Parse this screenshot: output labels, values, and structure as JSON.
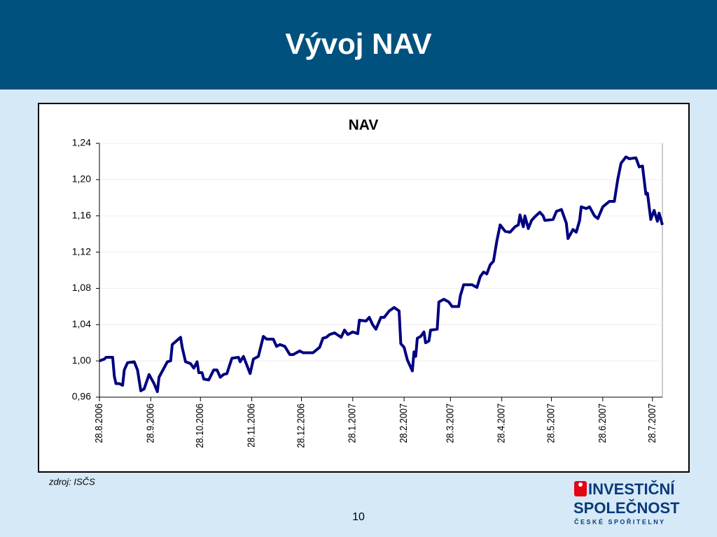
{
  "slide": {
    "title": "Vývoj NAV",
    "source": "zdroj: ISČS",
    "page": "10",
    "logo": [
      "INVESTIČNÍ",
      "SPOLEČNOST",
      "Č E S K É   S P O Ř I T E L N Y"
    ]
  },
  "chart_data": {
    "type": "line",
    "title": "NAV",
    "color": "#000080",
    "grid": true,
    "x": [
      "28.8.2006",
      "31.8.2006",
      "1.9.2006",
      "5.9.2006",
      "6.9.2006",
      "7.9.2006",
      "9.9.2006",
      "11.9.2006",
      "12.9.2006",
      "14.9.2006",
      "18.9.2006",
      "20.9.2006",
      "22.9.2006",
      "24.9.2006",
      "27.9.2006",
      "30.9.2006",
      "2.10.2006",
      "3.10.2006",
      "8.10.2006",
      "10.10.2006",
      "11.10.2006",
      "16.10.2006",
      "17.10.2006",
      "19.10.2006",
      "22.10.2006",
      "24.10.2006",
      "26.10.2006",
      "27.10.2006",
      "29.10.2006",
      "30.10.2006",
      "2.11.2006",
      "5.11.2006",
      "7.11.2006",
      "9.11.2006",
      "11.11.2006",
      "13.11.2006",
      "16.11.2006",
      "20.11.2006",
      "21.11.2006",
      "23.11.2006",
      "27.11.2006",
      "29.11.2006",
      "2.12.2006",
      "5.12.2006",
      "7.12.2006",
      "11.12.2006",
      "13.12.2006",
      "15.12.2006",
      "18.12.2006",
      "21.12.2006",
      "23.12.2006",
      "27.12.2006",
      "29.12.2006",
      "4.1.2007",
      "8.1.2007",
      "10.1.2007",
      "12.1.2007",
      "14.1.2007",
      "17.1.2007",
      "21.1.2007",
      "23.1.2007",
      "25.1.2007",
      "28.1.2007",
      "31.1.2007",
      "1.2.2007",
      "5.2.2007",
      "7.2.2007",
      "9.2.2007",
      "11.2.2007",
      "14.2.2007",
      "16.2.2007",
      "19.2.2007",
      "22.2.2007",
      "25.2.2007",
      "26.2.2007",
      "28.2.2007",
      "2.3.2007",
      "5.3.2007",
      "6.3.2007",
      "7.3.2007",
      "8.3.2007",
      "10.3.2007",
      "12.3.2007",
      "13.3.2007",
      "15.3.2007",
      "16.3.2007",
      "20.3.2007",
      "21.3.2007",
      "24.3.2007",
      "27.3.2007",
      "29.3.2007",
      "2.4.2007",
      "3.4.2007",
      "5.4.2007",
      "10.4.2007",
      "13.4.2007",
      "15.4.2007",
      "17.4.2007",
      "19.4.2007",
      "21.4.2007",
      "23.4.2007",
      "25.4.2007",
      "27.4.2007",
      "30.4.2007",
      "3.5.2007",
      "6.5.2007",
      "8.5.2007",
      "9.5.2007",
      "11.5.2007",
      "12.5.2007",
      "14.5.2007",
      "16.5.2007",
      "18.5.2007",
      "21.5.2007",
      "23.5.2007",
      "24.5.2007",
      "29.5.2007",
      "31.5.2007",
      "3.6.2007",
      "6.6.2007",
      "7.6.2007",
      "10.6.2007",
      "12.6.2007",
      "14.6.2007",
      "15.6.2007",
      "18.6.2007",
      "20.6.2007",
      "23.6.2007",
      "25.6.2007",
      "28.6.2007",
      "2.7.2007",
      "5.7.2007",
      "7.7.2007",
      "9.7.2007",
      "12.7.2007",
      "14.7.2007",
      "18.7.2007",
      "20.7.2007",
      "22.7.2007",
      "24.7.2007",
      "25.7.2007",
      "27.7.2007",
      "29.7.2007",
      "31.7.2007",
      "1.8.2007",
      "3.8.2007"
    ],
    "values": [
      1.0,
      1.002,
      1.004,
      1.004,
      0.983,
      0.975,
      0.975,
      0.973,
      0.99,
      0.998,
      0.999,
      0.99,
      0.967,
      0.969,
      0.985,
      0.975,
      0.966,
      0.982,
      0.999,
      1.0,
      1.018,
      1.026,
      1.015,
      0.999,
      0.997,
      0.992,
      0.999,
      0.987,
      0.987,
      0.98,
      0.979,
      0.99,
      0.99,
      0.982,
      0.985,
      0.986,
      1.003,
      1.004,
      0.999,
      1.005,
      0.986,
      1.002,
      1.005,
      1.027,
      1.024,
      1.024,
      1.016,
      1.018,
      1.016,
      1.007,
      1.007,
      1.011,
      1.009,
      1.009,
      1.015,
      1.025,
      1.026,
      1.029,
      1.031,
      1.026,
      1.034,
      1.029,
      1.032,
      1.03,
      1.045,
      1.044,
      1.048,
      1.04,
      1.035,
      1.048,
      1.048,
      1.055,
      1.059,
      1.055,
      1.019,
      1.015,
      1.001,
      0.989,
      1.01,
      1.005,
      1.025,
      1.027,
      1.032,
      1.02,
      1.022,
      1.034,
      1.035,
      1.065,
      1.068,
      1.065,
      1.06,
      1.06,
      1.072,
      1.084,
      1.084,
      1.081,
      1.093,
      1.098,
      1.096,
      1.106,
      1.11,
      1.132,
      1.15,
      1.143,
      1.142,
      1.148,
      1.15,
      1.161,
      1.148,
      1.16,
      1.146,
      1.155,
      1.159,
      1.164,
      1.16,
      1.155,
      1.156,
      1.165,
      1.167,
      1.152,
      1.135,
      1.145,
      1.142,
      1.155,
      1.17,
      1.168,
      1.17,
      1.16,
      1.157,
      1.17,
      1.176,
      1.176,
      1.2,
      1.218,
      1.225,
      1.223,
      1.224,
      1.214,
      1.215,
      1.184,
      1.185,
      1.156,
      1.166,
      1.154,
      1.163,
      1.15
    ],
    "xlim": [
      "28.8.2006",
      "3.8.2007"
    ],
    "xticks": [
      "28.8.2006",
      "28.9.2006",
      "28.10.2006",
      "28.11.2006",
      "28.12.2006",
      "28.1.2007",
      "28.2.2007",
      "28.3.2007",
      "28.4.2007",
      "28.5.2007",
      "28.6.2007",
      "28.7.2007"
    ],
    "ylim": [
      0.96,
      1.24
    ],
    "yticks": [
      {
        "value": 0.96,
        "label": "0,96"
      },
      {
        "value": 1.0,
        "label": "1,00"
      },
      {
        "value": 1.04,
        "label": "1,04"
      },
      {
        "value": 1.08,
        "label": "1,08"
      },
      {
        "value": 1.12,
        "label": "1,12"
      },
      {
        "value": 1.16,
        "label": "1,16"
      },
      {
        "value": 1.2,
        "label": "1,20"
      },
      {
        "value": 1.24,
        "label": "1,24"
      }
    ]
  }
}
